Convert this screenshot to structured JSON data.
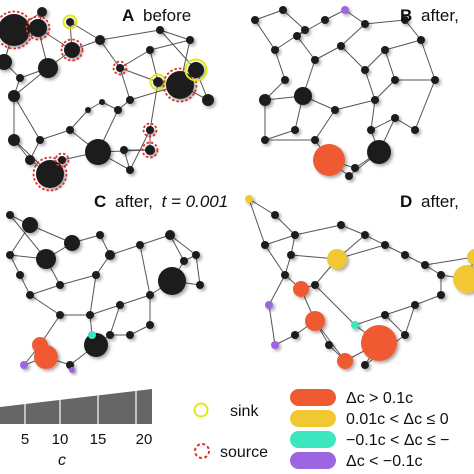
{
  "panels": [
    {
      "letter": "A",
      "caption": "before"
    },
    {
      "letter": "B",
      "caption": "after,"
    },
    {
      "letter": "C",
      "caption": "after,",
      "time": "t = 0.001"
    },
    {
      "letter": "D",
      "caption": "after,"
    }
  ],
  "legend": {
    "sink": "sink",
    "source": "source",
    "size_ticks": [
      "5",
      "10",
      "15",
      "20"
    ],
    "size_axis_label": "c",
    "categories": [
      {
        "label": "Δc > 0.1c",
        "color": "#f05a32"
      },
      {
        "label": "0.01c < Δc ≤ 0",
        "color": "#f2c832"
      },
      {
        "label": "−0.1c < Δc ≤ −",
        "color": "#3ee6c0"
      },
      {
        "label": "Δc < −0.1c",
        "color": "#9b66e0"
      }
    ]
  },
  "colors": {
    "node": "#1e1e1e",
    "edge": "#555555",
    "sink_ring": "#dfe81a",
    "source_ring": "#e0302a",
    "wedge": "#666666"
  }
}
